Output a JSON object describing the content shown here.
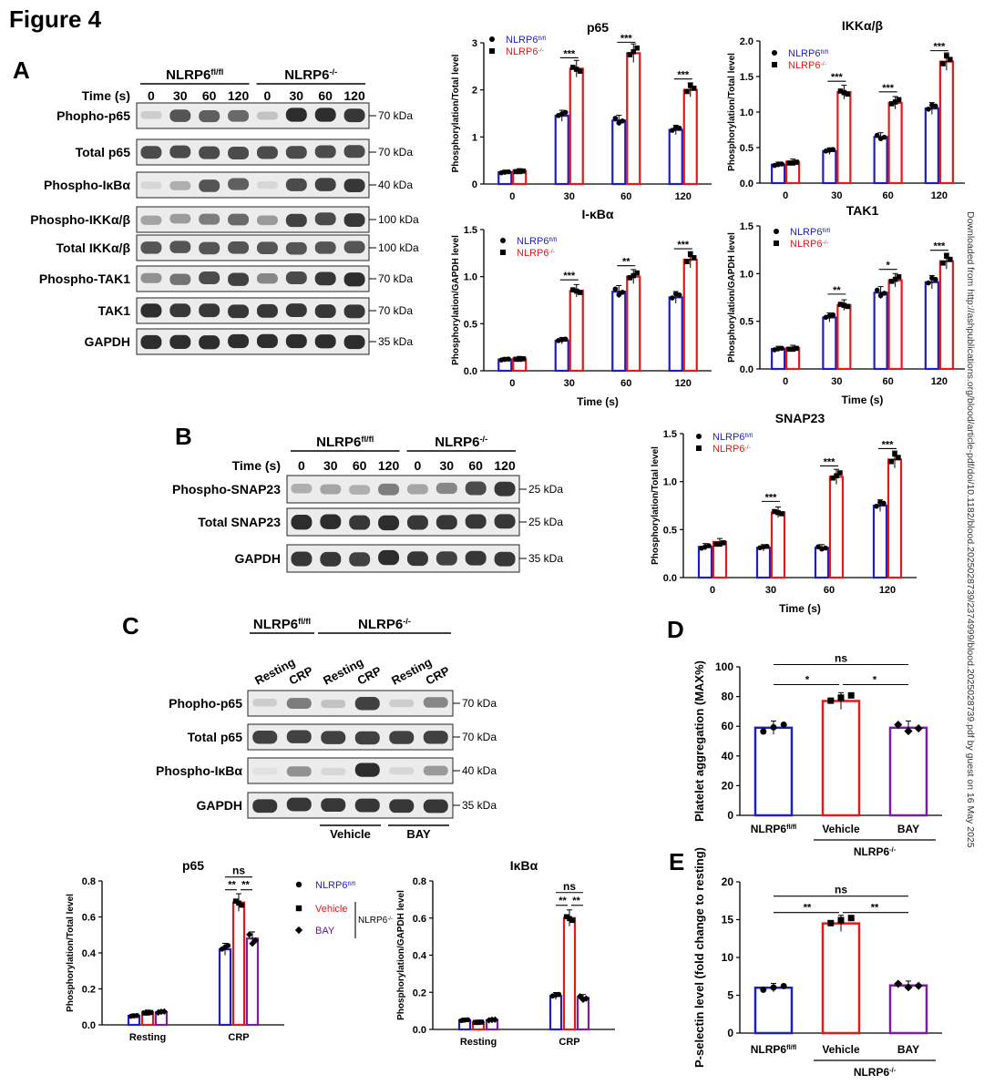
{
  "figure_title": "Figure 4",
  "side_note": "Downloaded from http://ashpublications.org/blood/article-pdf/doi/10.1182/blood.2025028739/2374999/blood.2025028739.pdf by guest on 16 May 2025",
  "colors": {
    "flfl": "#1f1fbf",
    "ko": "#e01b1b",
    "bay": "#7b1fa2",
    "text_bay": "#5a1a8c"
  },
  "panelA": {
    "letter": "A",
    "group1": "NLRP6",
    "group1_sup": "fl/fl",
    "group2": "NLRP6",
    "group2_sup": "-/-",
    "time_label": "Time (s)",
    "times": [
      "0",
      "30",
      "60",
      "120",
      "0",
      "30",
      "60",
      "120"
    ],
    "blots": [
      {
        "label": "Phopho-p65",
        "kda": "70 kDa"
      },
      {
        "label": "Total p65",
        "kda": "70 kDa"
      },
      {
        "label": "Phospho-IκBα",
        "kda": "40 kDa"
      },
      {
        "label": "Phospho-IKKα/β",
        "kda": "100 kDa"
      },
      {
        "label": "Total IKKα/β",
        "kda": "100 kDa"
      },
      {
        "label": "Phospho-TAK1",
        "kda": "70 kDa"
      },
      {
        "label": "TAK1",
        "kda": "70 kDa"
      },
      {
        "label": "GAPDH",
        "kda": "35 kDa"
      }
    ]
  },
  "panelB": {
    "letter": "B",
    "group1": "NLRP6",
    "group1_sup": "fl/fl",
    "group2": "NLRP6",
    "group2_sup": "-/-",
    "time_label": "Time (s)",
    "times": [
      "0",
      "30",
      "60",
      "120",
      "0",
      "30",
      "60",
      "120"
    ],
    "blots": [
      {
        "label": "Phospho-SNAP23",
        "kda": "25 kDa"
      },
      {
        "label": "Total SNAP23",
        "kda": "25 kDa"
      },
      {
        "label": "GAPDH",
        "kda": "35 kDa"
      }
    ]
  },
  "panelC": {
    "letter": "C",
    "group1": "NLRP6",
    "group1_sup": "fl/fl",
    "group2": "NLRP6",
    "group2_sup": "-/-",
    "lanes": [
      "Resting",
      "CRP",
      "Resting",
      "CRP",
      "Resting",
      "CRP"
    ],
    "treat1": "Vehicle",
    "treat2": "BAY",
    "blots": [
      {
        "label": "Phopho-p65",
        "kda": "70 kDa"
      },
      {
        "label": "Total p65",
        "kda": "70 kDa"
      },
      {
        "label": "Phospho-IκBα",
        "kda": "40 kDa"
      },
      {
        "label": "GAPDH",
        "kda": "35 kDa"
      }
    ],
    "legend": {
      "flfl": "NLRP6",
      "flfl_sup": "fl/fl",
      "vehicle": "Vehicle",
      "bay": "BAY",
      "ko": "NLRP6",
      "ko_sup": "-/-"
    }
  },
  "panelD": {
    "letter": "D",
    "x_group": "NLRP6",
    "x_group_sup": "-/-"
  },
  "panelE": {
    "letter": "E",
    "x_group": "NLRP6",
    "x_group_sup": "-/-"
  },
  "chart_data": [
    {
      "id": "A-p65",
      "type": "bar",
      "title": "p65",
      "xlabel": "",
      "ylabel": "Phosphorylation/Total level",
      "categories": [
        "0",
        "30",
        "60",
        "120"
      ],
      "ylim": [
        0,
        3
      ],
      "yticks": [
        0,
        1,
        2,
        3
      ],
      "legend": [
        {
          "name": "NLRP6",
          "sup": "fl/fl"
        },
        {
          "name": "NLRP6",
          "sup": "-/-"
        }
      ],
      "series": [
        {
          "name": "NLRP6fl/fl",
          "values": [
            0.25,
            1.45,
            1.35,
            1.15
          ]
        },
        {
          "name": "NLRP6-/-",
          "values": [
            0.28,
            2.45,
            2.78,
            2.0
          ]
        }
      ],
      "sig": [
        "",
        "***",
        "***",
        "***"
      ]
    },
    {
      "id": "A-IKK",
      "type": "bar",
      "title": "IKKα/β",
      "xlabel": "",
      "ylabel": "Phosphorylation/Total level",
      "categories": [
        "0",
        "30",
        "60",
        "120"
      ],
      "ylim": [
        0,
        2.0
      ],
      "yticks": [
        0.0,
        0.5,
        1.0,
        1.5,
        2.0
      ],
      "legend": [
        {
          "name": "NLRP6",
          "sup": "fl/fl"
        },
        {
          "name": "NLRP6",
          "sup": "-/-"
        }
      ],
      "series": [
        {
          "name": "NLRP6fl/fl",
          "values": [
            0.26,
            0.45,
            0.65,
            1.05
          ]
        },
        {
          "name": "NLRP6-/-",
          "values": [
            0.3,
            1.28,
            1.13,
            1.71
          ]
        }
      ],
      "sig": [
        "",
        "***",
        "***",
        "***"
      ]
    },
    {
      "id": "A-IkBa",
      "type": "bar",
      "title": "I-κBα",
      "xlabel": "Time (s)",
      "ylabel": "Phosphorylation/GAPDH level",
      "categories": [
        "0",
        "30",
        "60",
        "120"
      ],
      "ylim": [
        0,
        1.5
      ],
      "yticks": [
        0.0,
        0.5,
        1.0,
        1.5
      ],
      "legend": [
        {
          "name": "NLRP6",
          "sup": "fl/fl"
        },
        {
          "name": "NLRP6",
          "sup": "-/-"
        }
      ],
      "series": [
        {
          "name": "NLRP6fl/fl",
          "values": [
            0.12,
            0.32,
            0.84,
            0.78
          ]
        },
        {
          "name": "NLRP6-/-",
          "values": [
            0.13,
            0.85,
            1.0,
            1.18
          ]
        }
      ],
      "sig": [
        "",
        "***",
        "**",
        "***"
      ]
    },
    {
      "id": "A-TAK1",
      "type": "bar",
      "title": "TAK1",
      "xlabel": "Time (s)",
      "ylabel": "Phosphorylation/GAPDH level",
      "categories": [
        "0",
        "30",
        "60",
        "120"
      ],
      "ylim": [
        0,
        1.5
      ],
      "yticks": [
        0.0,
        0.5,
        1.0,
        1.5
      ],
      "legend": [
        {
          "name": "NLRP6",
          "sup": "fl/fl"
        },
        {
          "name": "NLRP6",
          "sup": "-/-"
        }
      ],
      "series": [
        {
          "name": "NLRP6fl/fl",
          "values": [
            0.21,
            0.54,
            0.8,
            0.91
          ]
        },
        {
          "name": "NLRP6-/-",
          "values": [
            0.22,
            0.67,
            0.93,
            1.13
          ]
        }
      ],
      "sig": [
        "",
        "**",
        "*",
        "***"
      ]
    },
    {
      "id": "B-SNAP23",
      "type": "bar",
      "title": "SNAP23",
      "xlabel": "Time (s)",
      "ylabel": "Phosphorylation/Total level",
      "categories": [
        "0",
        "30",
        "60",
        "120"
      ],
      "ylim": [
        0,
        1.5
      ],
      "yticks": [
        0.0,
        0.5,
        1.0,
        1.5
      ],
      "legend": [
        {
          "name": "NLRP6",
          "sup": "fl/fl"
        },
        {
          "name": "NLRP6",
          "sup": "-/-"
        }
      ],
      "series": [
        {
          "name": "NLRP6fl/fl",
          "values": [
            0.32,
            0.31,
            0.31,
            0.75
          ]
        },
        {
          "name": "NLRP6-/-",
          "values": [
            0.37,
            0.68,
            1.05,
            1.23
          ]
        }
      ],
      "sig": [
        "",
        "***",
        "***",
        "***"
      ]
    },
    {
      "id": "C-p65",
      "type": "bar",
      "title": "p65",
      "xlabel": "",
      "ylabel": "Phosphorylation/Total level",
      "categories": [
        "Resting",
        "CRP"
      ],
      "ylim": [
        0,
        0.8
      ],
      "yticks": [
        0.0,
        0.2,
        0.4,
        0.6,
        0.8
      ],
      "series": [
        {
          "name": "NLRP6fl/fl",
          "values": [
            0.05,
            0.42
          ]
        },
        {
          "name": "Vehicle",
          "values": [
            0.07,
            0.68
          ]
        },
        {
          "name": "BAY",
          "values": [
            0.07,
            0.48
          ]
        }
      ],
      "sig_top": "ns",
      "sig_pair": [
        "**",
        "**"
      ]
    },
    {
      "id": "C-IkBa",
      "type": "bar",
      "title": "IκBα",
      "xlabel": "",
      "ylabel": "Phosphorylation/GAPDH level",
      "categories": [
        "Resting",
        "CRP"
      ],
      "ylim": [
        0,
        0.8
      ],
      "yticks": [
        0.0,
        0.2,
        0.4,
        0.6,
        0.8
      ],
      "series": [
        {
          "name": "NLRP6fl/fl",
          "values": [
            0.05,
            0.18
          ]
        },
        {
          "name": "Vehicle",
          "values": [
            0.04,
            0.6
          ]
        },
        {
          "name": "BAY",
          "values": [
            0.05,
            0.17
          ]
        }
      ],
      "sig_top": "ns",
      "sig_pair": [
        "**",
        "**"
      ]
    },
    {
      "id": "D",
      "type": "bar",
      "title": "",
      "xlabel": "",
      "ylabel": "Platelet aggregation (MAX%)",
      "categories": [
        "NLRP6fl/fl",
        "Vehicle",
        "BAY"
      ],
      "ylim": [
        0,
        100
      ],
      "yticks": [
        0,
        20,
        40,
        60,
        80,
        100
      ],
      "values": [
        59,
        77,
        59
      ],
      "sig_top": "ns",
      "sig_pair": [
        "*",
        "*"
      ]
    },
    {
      "id": "E",
      "type": "bar",
      "title": "",
      "xlabel": "",
      "ylabel": "P-selectin level (fold change to resting)",
      "categories": [
        "NLRP6fl/fl",
        "Vehicle",
        "BAY"
      ],
      "ylim": [
        0,
        20
      ],
      "yticks": [
        0,
        5,
        10,
        15,
        20
      ],
      "values": [
        6.0,
        14.5,
        6.3
      ],
      "sig_top": "ns",
      "sig_pair": [
        "**",
        "**"
      ]
    }
  ]
}
